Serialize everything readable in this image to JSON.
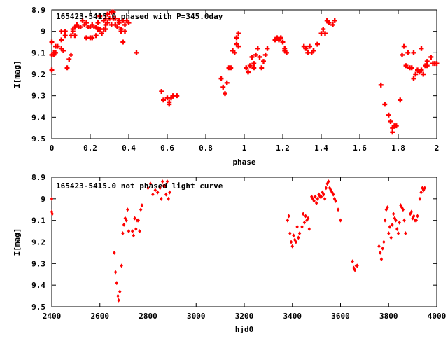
{
  "chart_data": [
    {
      "type": "scatter",
      "title": "165423-5415.0  phased with P=345.0day",
      "xlabel": "phase",
      "ylabel": "I[mag]",
      "xlim": [
        0,
        2
      ],
      "ylim": [
        8.9,
        9.5
      ],
      "y_inverted": true,
      "grid": false,
      "marker_color": "#ff0000",
      "x_ticks": [
        "0",
        "0.2",
        "0.4",
        "0.6",
        "0.8",
        "1",
        "1.2",
        "1.4",
        "1.6",
        "1.8",
        "2"
      ],
      "y_ticks": [
        "8.9",
        "9",
        "9.1",
        "9.2",
        "9.3",
        "9.4",
        "9.5"
      ],
      "points": [
        [
          0.0,
          9.11
        ],
        [
          0.0,
          9.05
        ],
        [
          0.0,
          9.18
        ],
        [
          0.01,
          9.1
        ],
        [
          0.01,
          9.11
        ],
        [
          0.02,
          9.07
        ],
        [
          0.02,
          9.1
        ],
        [
          0.03,
          9.07
        ],
        [
          0.05,
          9.08
        ],
        [
          0.05,
          9.04
        ],
        [
          0.05,
          9.0
        ],
        [
          0.06,
          9.09
        ],
        [
          0.07,
          9.02
        ],
        [
          0.07,
          9.0
        ],
        [
          0.08,
          9.17
        ],
        [
          0.09,
          9.13
        ],
        [
          0.1,
          9.11
        ],
        [
          0.1,
          9.02
        ],
        [
          0.11,
          9.0
        ],
        [
          0.11,
          8.99
        ],
        [
          0.12,
          9.02
        ],
        [
          0.12,
          8.98
        ],
        [
          0.13,
          8.97
        ],
        [
          0.14,
          8.98
        ],
        [
          0.15,
          8.98
        ],
        [
          0.16,
          8.95
        ],
        [
          0.17,
          8.97
        ],
        [
          0.18,
          9.03
        ],
        [
          0.18,
          8.96
        ],
        [
          0.19,
          8.98
        ],
        [
          0.2,
          9.03
        ],
        [
          0.2,
          8.98
        ],
        [
          0.21,
          9.03
        ],
        [
          0.21,
          8.97
        ],
        [
          0.22,
          8.98
        ],
        [
          0.23,
          9.02
        ],
        [
          0.23,
          8.98
        ],
        [
          0.24,
          8.96
        ],
        [
          0.24,
          8.99
        ],
        [
          0.25,
          8.99
        ],
        [
          0.25,
          8.93
        ],
        [
          0.26,
          9.01
        ],
        [
          0.27,
          8.95
        ],
        [
          0.27,
          8.99
        ],
        [
          0.28,
          8.97
        ],
        [
          0.28,
          8.94
        ],
        [
          0.28,
          8.99
        ],
        [
          0.29,
          8.96
        ],
        [
          0.29,
          8.92
        ],
        [
          0.3,
          8.94
        ],
        [
          0.31,
          8.91
        ],
        [
          0.31,
          8.97
        ],
        [
          0.32,
          8.94
        ],
        [
          0.32,
          8.91
        ],
        [
          0.33,
          8.94
        ],
        [
          0.33,
          8.97
        ],
        [
          0.34,
          8.98
        ],
        [
          0.35,
          8.95
        ],
        [
          0.35,
          8.96
        ],
        [
          0.36,
          9.0
        ],
        [
          0.36,
          8.99
        ],
        [
          0.37,
          8.95
        ],
        [
          0.37,
          9.05
        ],
        [
          0.38,
          9.0
        ],
        [
          0.38,
          8.97
        ],
        [
          0.39,
          8.95
        ],
        [
          0.4,
          8.96
        ],
        [
          0.44,
          9.1
        ],
        [
          0.57,
          9.28
        ],
        [
          0.58,
          9.32
        ],
        [
          0.6,
          9.31
        ],
        [
          0.61,
          9.33
        ],
        [
          0.61,
          9.34
        ],
        [
          0.62,
          9.31
        ],
        [
          0.63,
          9.3
        ],
        [
          0.65,
          9.3
        ],
        [
          0.88,
          9.22
        ],
        [
          0.89,
          9.26
        ],
        [
          0.9,
          9.29
        ],
        [
          0.91,
          9.24
        ],
        [
          0.92,
          9.17
        ],
        [
          0.93,
          9.17
        ],
        [
          0.94,
          9.09
        ],
        [
          0.95,
          9.1
        ],
        [
          0.96,
          9.03
        ],
        [
          0.96,
          9.06
        ],
        [
          0.97,
          9.07
        ],
        [
          0.97,
          9.01
        ],
        [
          1.01,
          9.17
        ],
        [
          1.02,
          9.19
        ],
        [
          1.03,
          9.16
        ],
        [
          1.04,
          9.12
        ],
        [
          1.05,
          9.17
        ],
        [
          1.05,
          9.15
        ],
        [
          1.06,
          9.11
        ],
        [
          1.07,
          9.08
        ],
        [
          1.08,
          9.12
        ],
        [
          1.09,
          9.17
        ],
        [
          1.1,
          9.14
        ],
        [
          1.11,
          9.11
        ],
        [
          1.12,
          9.08
        ],
        [
          1.16,
          9.04
        ],
        [
          1.17,
          9.03
        ],
        [
          1.18,
          9.04
        ],
        [
          1.19,
          9.03
        ],
        [
          1.2,
          9.05
        ],
        [
          1.21,
          9.08
        ],
        [
          1.21,
          9.09
        ],
        [
          1.22,
          9.1
        ],
        [
          1.31,
          9.07
        ],
        [
          1.32,
          9.08
        ],
        [
          1.33,
          9.1
        ],
        [
          1.34,
          9.07
        ],
        [
          1.35,
          9.1
        ],
        [
          1.36,
          9.09
        ],
        [
          1.36,
          9.09
        ],
        [
          1.38,
          9.06
        ],
        [
          1.4,
          9.01
        ],
        [
          1.41,
          8.99
        ],
        [
          1.42,
          9.01
        ],
        [
          1.43,
          8.95
        ],
        [
          1.44,
          8.96
        ],
        [
          1.46,
          8.97
        ],
        [
          1.47,
          8.95
        ],
        [
          1.71,
          9.25
        ],
        [
          1.73,
          9.34
        ],
        [
          1.75,
          9.39
        ],
        [
          1.76,
          9.42
        ],
        [
          1.77,
          9.45
        ],
        [
          1.77,
          9.47
        ],
        [
          1.78,
          9.44
        ],
        [
          1.79,
          9.44
        ],
        [
          1.81,
          9.32
        ],
        [
          1.82,
          9.11
        ],
        [
          1.83,
          9.07
        ],
        [
          1.84,
          9.16
        ],
        [
          1.85,
          9.1
        ],
        [
          1.86,
          9.17
        ],
        [
          1.87,
          9.17
        ],
        [
          1.88,
          9.22
        ],
        [
          1.88,
          9.1
        ],
        [
          1.89,
          9.2
        ],
        [
          1.9,
          9.18
        ],
        [
          1.91,
          9.19
        ],
        [
          1.92,
          9.08
        ],
        [
          1.92,
          9.18
        ],
        [
          1.93,
          9.2
        ],
        [
          1.94,
          9.16
        ],
        [
          1.95,
          9.16
        ],
        [
          1.95,
          9.14
        ],
        [
          1.97,
          9.12
        ],
        [
          1.98,
          9.15
        ],
        [
          1.99,
          9.15
        ],
        [
          2.0,
          9.15
        ]
      ]
    },
    {
      "type": "scatter",
      "title": "165423-5415.0 not phased light curve",
      "xlabel": "hjd0",
      "ylabel": "I[mag]",
      "xlim": [
        2400,
        4000
      ],
      "ylim": [
        8.9,
        9.5
      ],
      "y_inverted": true,
      "grid": false,
      "marker_color": "#ff0000",
      "x_ticks": [
        "2400",
        "2600",
        "2800",
        "3000",
        "3200",
        "3400",
        "3600",
        "3800",
        "4000"
      ],
      "y_ticks": [
        "8.9",
        "9",
        "9.1",
        "9.2",
        "9.3",
        "9.4",
        "9.5"
      ],
      "points": [
        [
          2400,
          9.0
        ],
        [
          2400,
          9.06
        ],
        [
          2402,
          9.07
        ],
        [
          2660,
          9.25
        ],
        [
          2665,
          9.34
        ],
        [
          2670,
          9.39
        ],
        [
          2675,
          9.45
        ],
        [
          2678,
          9.47
        ],
        [
          2683,
          9.43
        ],
        [
          2690,
          9.31
        ],
        [
          2695,
          9.16
        ],
        [
          2700,
          9.12
        ],
        [
          2705,
          9.09
        ],
        [
          2710,
          9.1
        ],
        [
          2715,
          9.05
        ],
        [
          2720,
          9.15
        ],
        [
          2735,
          9.15
        ],
        [
          2740,
          9.17
        ],
        [
          2745,
          9.09
        ],
        [
          2750,
          9.14
        ],
        [
          2755,
          9.1
        ],
        [
          2760,
          9.1
        ],
        [
          2765,
          9.15
        ],
        [
          2770,
          9.05
        ],
        [
          2775,
          9.03
        ],
        [
          2800,
          8.95
        ],
        [
          2810,
          8.93
        ],
        [
          2820,
          8.98
        ],
        [
          2830,
          8.96
        ],
        [
          2840,
          8.97
        ],
        [
          2850,
          8.95
        ],
        [
          2855,
          9.0
        ],
        [
          2860,
          8.92
        ],
        [
          2865,
          8.94
        ],
        [
          2870,
          8.94
        ],
        [
          2875,
          8.98
        ],
        [
          2880,
          8.92
        ],
        [
          2885,
          9.0
        ],
        [
          2890,
          8.97
        ],
        [
          3380,
          9.1
        ],
        [
          3385,
          9.08
        ],
        [
          3390,
          9.16
        ],
        [
          3395,
          9.2
        ],
        [
          3400,
          9.22
        ],
        [
          3405,
          9.17
        ],
        [
          3410,
          9.19
        ],
        [
          3415,
          9.2
        ],
        [
          3420,
          9.13
        ],
        [
          3425,
          9.18
        ],
        [
          3430,
          9.16
        ],
        [
          3440,
          9.13
        ],
        [
          3445,
          9.07
        ],
        [
          3450,
          9.11
        ],
        [
          3455,
          9.08
        ],
        [
          3460,
          9.1
        ],
        [
          3465,
          9.09
        ],
        [
          3470,
          9.14
        ],
        [
          3480,
          8.99
        ],
        [
          3485,
          9.0
        ],
        [
          3490,
          9.01
        ],
        [
          3495,
          8.99
        ],
        [
          3500,
          9.02
        ],
        [
          3505,
          9.0
        ],
        [
          3510,
          8.98
        ],
        [
          3515,
          8.99
        ],
        [
          3520,
          8.99
        ],
        [
          3525,
          8.97
        ],
        [
          3530,
          8.98
        ],
        [
          3535,
          9.0
        ],
        [
          3540,
          8.95
        ],
        [
          3545,
          8.93
        ],
        [
          3550,
          8.92
        ],
        [
          3555,
          8.95
        ],
        [
          3560,
          8.96
        ],
        [
          3565,
          8.97
        ],
        [
          3570,
          8.98
        ],
        [
          3575,
          9.0
        ],
        [
          3580,
          9.01
        ],
        [
          3590,
          9.05
        ],
        [
          3600,
          9.1
        ],
        [
          3650,
          9.29
        ],
        [
          3655,
          9.32
        ],
        [
          3660,
          9.33
        ],
        [
          3665,
          9.31
        ],
        [
          3670,
          9.31
        ],
        [
          3760,
          9.22
        ],
        [
          3765,
          9.25
        ],
        [
          3770,
          9.28
        ],
        [
          3775,
          9.23
        ],
        [
          3780,
          9.2
        ],
        [
          3785,
          9.1
        ],
        [
          3790,
          9.05
        ],
        [
          3795,
          9.04
        ],
        [
          3800,
          9.16
        ],
        [
          3805,
          9.13
        ],
        [
          3810,
          9.18
        ],
        [
          3815,
          9.12
        ],
        [
          3820,
          9.07
        ],
        [
          3825,
          9.09
        ],
        [
          3830,
          9.1
        ],
        [
          3835,
          9.14
        ],
        [
          3840,
          9.16
        ],
        [
          3845,
          9.11
        ],
        [
          3850,
          9.03
        ],
        [
          3855,
          9.04
        ],
        [
          3860,
          9.05
        ],
        [
          3865,
          9.1
        ],
        [
          3870,
          9.16
        ],
        [
          3890,
          9.07
        ],
        [
          3895,
          9.06
        ],
        [
          3900,
          9.09
        ],
        [
          3905,
          9.08
        ],
        [
          3910,
          9.1
        ],
        [
          3915,
          9.1
        ],
        [
          3920,
          9.08
        ],
        [
          3930,
          9.0
        ],
        [
          3935,
          8.97
        ],
        [
          3940,
          8.95
        ],
        [
          3945,
          8.96
        ],
        [
          3950,
          8.95
        ]
      ]
    }
  ]
}
